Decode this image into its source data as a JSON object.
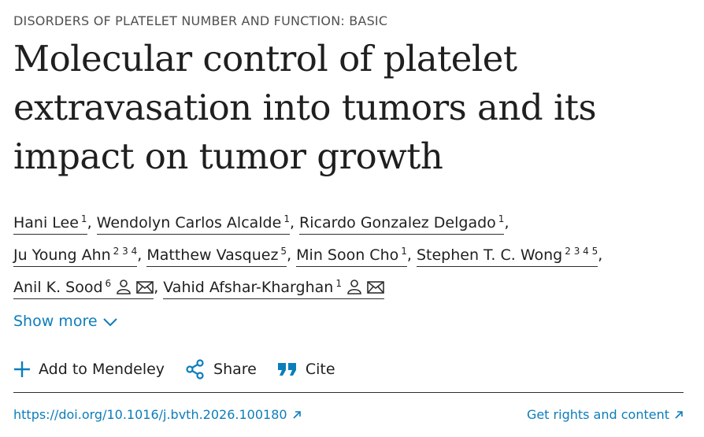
{
  "section": "DISORDERS OF PLATELET NUMBER AND FUNCTION: BASIC",
  "title": [
    "Molecular control of platelet",
    "extravasation into tumors and its",
    "impact on tumor growth"
  ],
  "authors": [
    {
      "name": "Hani Lee",
      "affiliations": [
        "1"
      ],
      "separator": ","
    },
    {
      "name": "Wendolyn Carlos Alcalde",
      "affiliations": [
        "1"
      ],
      "separator": ","
    },
    {
      "name": "Ricardo Gonzalez Delgado",
      "affiliations": [
        "1"
      ],
      "separator": ","
    },
    {
      "name": "Ju Young Ahn",
      "affiliations": [
        "2",
        "3",
        "4"
      ],
      "separator": ","
    },
    {
      "name": "Matthew Vasquez",
      "affiliations": [
        "5"
      ],
      "separator": ","
    },
    {
      "name": "Min Soon Cho",
      "affiliations": [
        "1"
      ],
      "separator": ","
    },
    {
      "name": "Stephen T. C. Wong",
      "affiliations": [
        "2",
        "3",
        "4",
        "5"
      ],
      "separator": ","
    },
    {
      "name": "Anil K. Sood",
      "affiliations": [
        "6"
      ],
      "separator": ","
    },
    {
      "name": "Vahid Afshar-Kharghan",
      "affiliations": [
        "1"
      ]
    }
  ],
  "show_more": "Show more",
  "actions": [
    "Add to Mendeley",
    "Share",
    "Cite"
  ],
  "doi": "https://doi.org/10.1016/j.bvth.2026.100180",
  "rights": "Get rights and content"
}
